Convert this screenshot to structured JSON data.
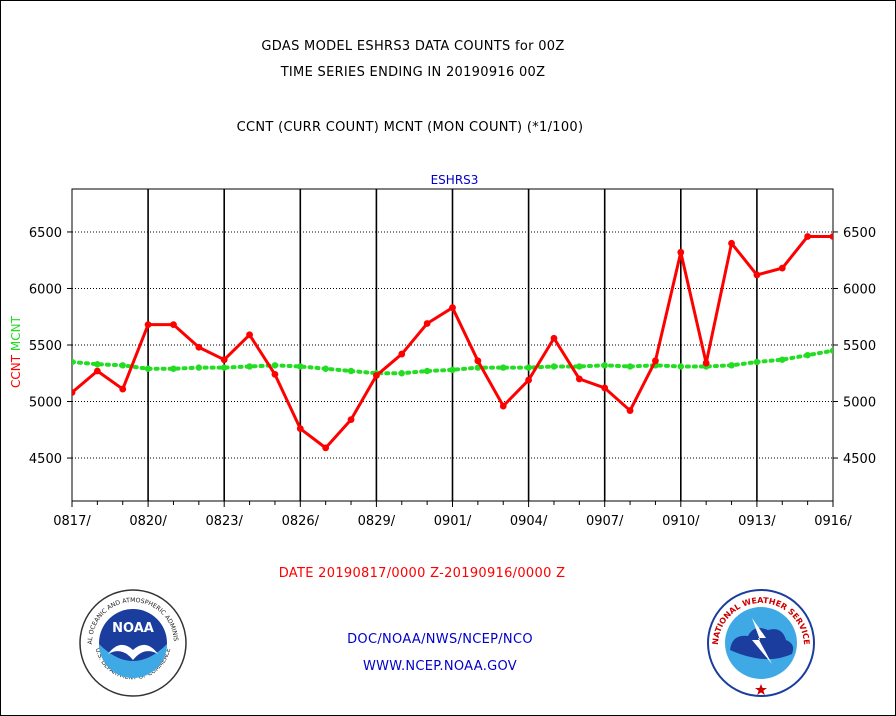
{
  "header": {
    "title_line1": "GDAS MODEL ESHRS3 DATA COUNTS for 00Z",
    "title_line2": "TIME SERIES ENDING IN 20190916 00Z",
    "subtitle": "CCNT (CURR COUNT) MCNT (MON COUNT) (*1/100)"
  },
  "footer": {
    "date_range": "DATE 20190817/0000 Z-20190916/0000 Z",
    "org": "DOC/NOAA/NWS/NCEP/NCO",
    "url": "WWW.NCEP.NOAA.GOV"
  },
  "logos": {
    "noaa_label": "NOAA",
    "noaa_ring_text": "NATIONAL OCEANIC AND ATMOSPHERIC ADMINISTRATION",
    "noaa_dept_text": "U.S. DEPARTMENT OF COMMERCE",
    "nws_ring_text": "NATIONAL WEATHER SERVICE"
  },
  "colors": {
    "ccnt": "#ff0000",
    "mcnt": "#22dd22",
    "panel_title": "#0000cc",
    "footer_blue": "#0000cc",
    "date_red": "#ff0000"
  },
  "chart_data": {
    "type": "line",
    "panel_title": "ESHRS3",
    "ylabel_left_ccnt": "CCNT",
    "ylabel_left_mcnt": "MCNT",
    "xlim": [
      0,
      30
    ],
    "ylim": [
      4120,
      6880
    ],
    "yticks": [
      4500,
      5000,
      5500,
      6000,
      6500
    ],
    "xtick_labels": [
      "0817/",
      "0820/",
      "0823/",
      "0826/",
      "0829/",
      "0901/",
      "0904/",
      "0907/",
      "0910/",
      "0913/",
      "0916/"
    ],
    "xtick_positions": [
      0,
      3,
      6,
      9,
      12,
      15,
      18,
      21,
      24,
      27,
      30
    ],
    "x": [
      0,
      1,
      2,
      3,
      4,
      5,
      6,
      7,
      8,
      9,
      10,
      11,
      12,
      13,
      14,
      15,
      16,
      17,
      18,
      19,
      20,
      21,
      22,
      23,
      24,
      25,
      26,
      27,
      28,
      29,
      30
    ],
    "series": [
      {
        "name": "CCNT",
        "values": [
          5080,
          5270,
          5110,
          5680,
          5680,
          5480,
          5370,
          5590,
          5240,
          4760,
          4590,
          4840,
          5230,
          5420,
          5690,
          5830,
          5360,
          4960,
          5190,
          5560,
          5200,
          5120,
          4920,
          5360,
          6320,
          5340,
          6400,
          6120,
          6180,
          6460,
          6460
        ]
      },
      {
        "name": "MCNT",
        "values": [
          5350,
          5330,
          5320,
          5290,
          5290,
          5300,
          5300,
          5310,
          5320,
          5310,
          5290,
          5270,
          5250,
          5250,
          5270,
          5280,
          5300,
          5300,
          5300,
          5310,
          5310,
          5320,
          5310,
          5320,
          5310,
          5310,
          5320,
          5350,
          5370,
          5410,
          5450
        ]
      }
    ]
  }
}
